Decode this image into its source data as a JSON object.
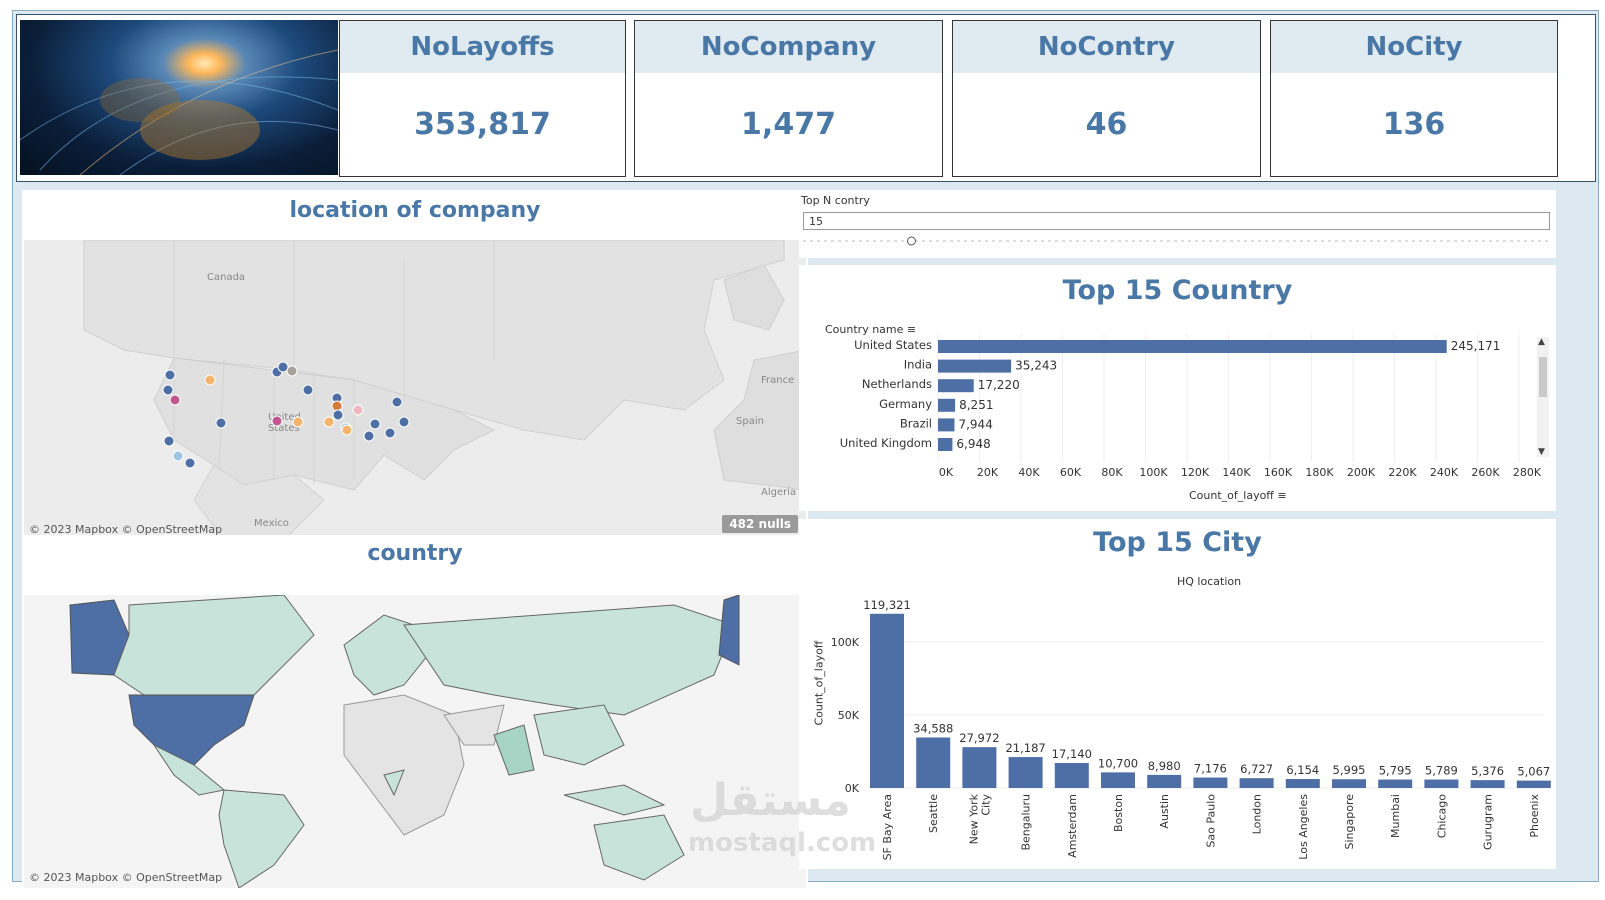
{
  "kpis": [
    {
      "label": "NoLayoffs",
      "value": "353,817"
    },
    {
      "label": "NoCompany",
      "value": "1,477"
    },
    {
      "label": "NoContry",
      "value": "46"
    },
    {
      "label": "NoCity",
      "value": "136"
    }
  ],
  "location_panel": {
    "title": "location of company",
    "labels": {
      "canada": "Canada",
      "us": "United States",
      "mexico": "Mexico",
      "france": "France",
      "spain": "Spain",
      "algeria": "Algeria"
    },
    "attribution": "© 2023 Mapbox © OpenStreetMap",
    "nulls": "482 nulls",
    "colors": {
      "blue": "#4e6fa6",
      "orange": "#f5b46c",
      "pink": "#f0b8c0",
      "magenta": "#c05890",
      "gray": "#aaa29a",
      "lightblue": "#9dc5e4",
      "darkorange": "#d57a3c"
    }
  },
  "country_panel": {
    "title": "country",
    "attribution": "© 2023 Mapbox © OpenStreetMap",
    "colors": {
      "high": "#4e6fa6",
      "mid": "#c8e4da",
      "low": "#e4e4e4"
    }
  },
  "filter": {
    "label": "Top N contry",
    "value": "15",
    "slider_fraction": 0.145
  },
  "country_chart": {
    "title": "Top 15 Country",
    "header": "Country name",
    "axis_title": "Count_of_layoff",
    "bar_color": "#4e6fa6"
  },
  "city_chart": {
    "title": "Top 15 City",
    "header": "HQ location",
    "axis_title": "Count_of_layoff",
    "bar_color": "#4e6fa6"
  },
  "chart_data": [
    {
      "type": "bar",
      "orientation": "horizontal",
      "title": "Top 15 Country",
      "xlabel": "Count_of_layoff",
      "ylabel": "Country name",
      "categories": [
        "United States",
        "India",
        "Netherlands",
        "Germany",
        "Brazil",
        "United Kingdom"
      ],
      "values": [
        245171,
        35243,
        17220,
        8251,
        7944,
        6948
      ],
      "value_labels": [
        "245,171",
        "35,243",
        "17,220",
        "8,251",
        "7,944",
        "6,948"
      ],
      "xlim": [
        0,
        280000
      ],
      "ticks": [
        "0K",
        "20K",
        "40K",
        "60K",
        "80K",
        "100K",
        "120K",
        "140K",
        "160K",
        "180K",
        "200K",
        "220K",
        "240K",
        "260K",
        "280K"
      ],
      "grid": true
    },
    {
      "type": "bar",
      "orientation": "vertical",
      "title": "Top 15 City",
      "xlabel": "HQ location",
      "ylabel": "Count_of_layoff",
      "categories": [
        "SF Bay Area",
        "Seattle",
        "New York City",
        "Bengaluru",
        "Amsterdam",
        "Boston",
        "Austin",
        "Sao Paulo",
        "London",
        "Los Angeles",
        "Singapore",
        "Mumbai",
        "Chicago",
        "Gurugram",
        "Phoenix"
      ],
      "values": [
        119321,
        34588,
        27972,
        21187,
        17140,
        10700,
        8980,
        7176,
        6727,
        6154,
        5995,
        5795,
        5789,
        5376,
        5067
      ],
      "value_labels": [
        "119,321",
        "34,588",
        "27,972",
        "21,187",
        "17,140",
        "10,700",
        "8,980",
        "7,176",
        "6,727",
        "6,154",
        "5,995",
        "5,795",
        "5,789",
        "5,376",
        "5,067"
      ],
      "ylim": [
        0,
        120000
      ],
      "ticks": [
        "0K",
        "50K",
        "100K"
      ],
      "grid": true
    }
  ],
  "watermark": {
    "arabic": "مستقل",
    "latin": "mostaql.com"
  }
}
